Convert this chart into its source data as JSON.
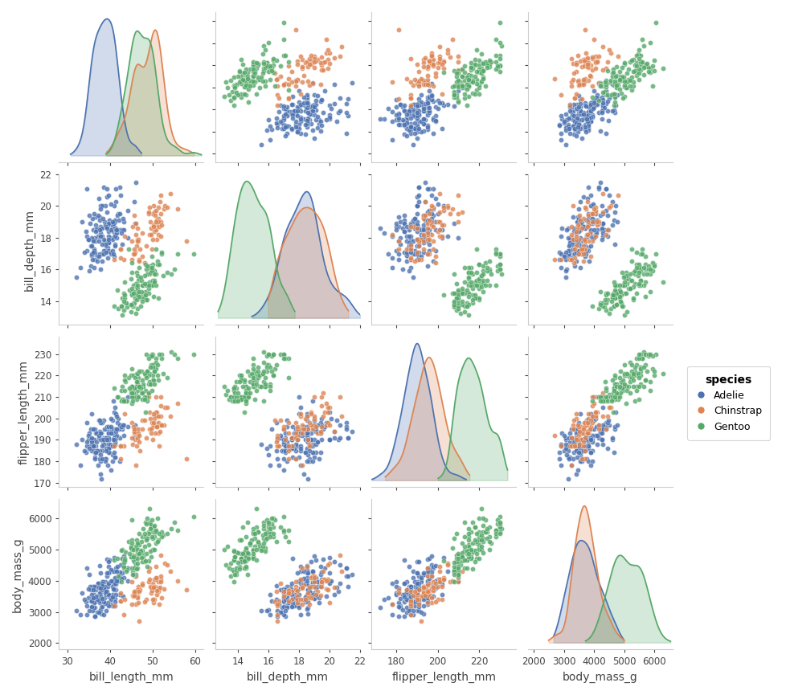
{
  "variables": [
    "bill_length_mm",
    "bill_depth_mm",
    "flipper_length_mm",
    "body_mass_g"
  ],
  "species": [
    "Adelie",
    "Chinstrap",
    "Gentoo"
  ],
  "colors": {
    "Adelie": "#4C72B0",
    "Chinstrap": "#DD8452",
    "Gentoo": "#55A868"
  },
  "alpha_scatter": 0.8,
  "alpha_kde": 0.25,
  "marker_size": 20,
  "legend_title": "species",
  "background_color": "#ffffff",
  "axis_label_fontsize": 10,
  "tick_fontsize": 8.5
}
